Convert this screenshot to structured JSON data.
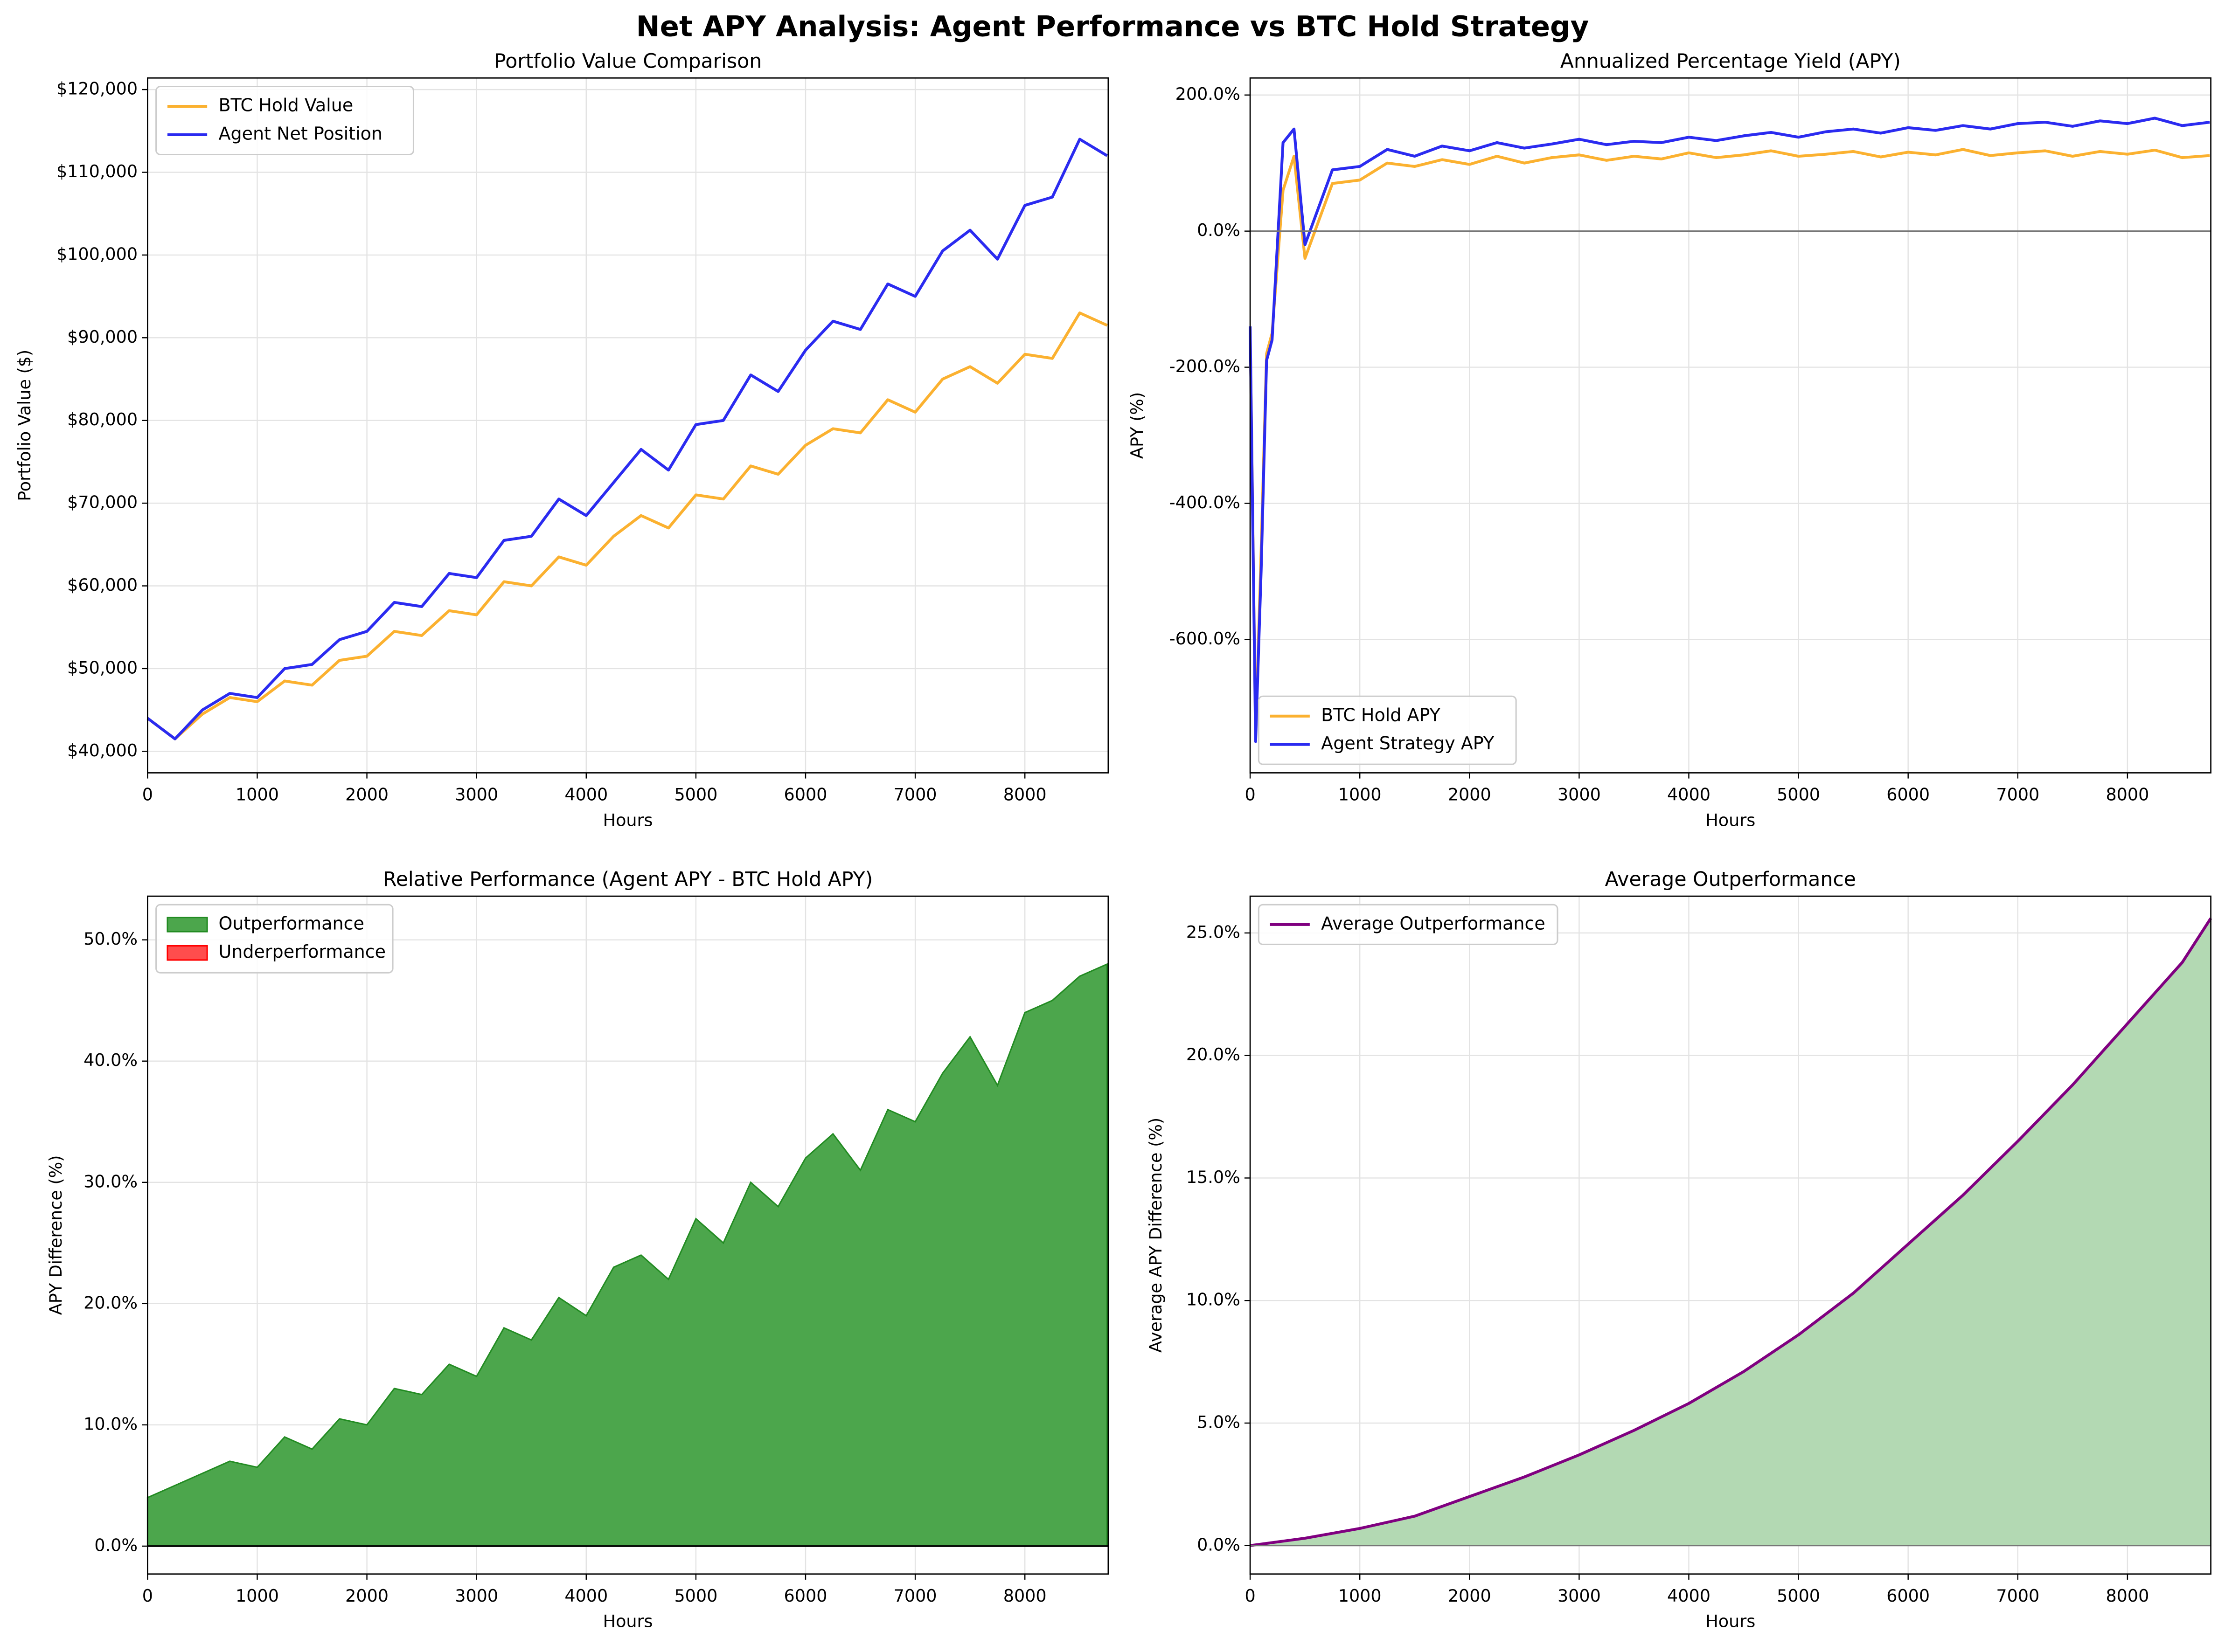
{
  "title": "Net APY Analysis: Agent Performance vs BTC Hold Strategy",
  "chart_data": [
    {
      "type": "line",
      "title": "Portfolio Value Comparison",
      "x_label": "Hours",
      "y_label": "Portfolio Value ($)",
      "x": [
        0,
        250,
        500,
        750,
        1000,
        1250,
        1500,
        1750,
        2000,
        2250,
        2500,
        2750,
        3000,
        3250,
        3500,
        3750,
        4000,
        4250,
        4500,
        4750,
        5000,
        5250,
        5500,
        5750,
        6000,
        6250,
        6500,
        6750,
        7000,
        7250,
        7500,
        7750,
        8000,
        8250,
        8500,
        8750
      ],
      "series": [
        {
          "name": "BTC Hold Value",
          "color": "#fbb130",
          "values": [
            44000,
            41500,
            44500,
            46500,
            46000,
            48500,
            48000,
            51000,
            51500,
            54500,
            54000,
            57000,
            56500,
            60500,
            60000,
            63500,
            62500,
            66000,
            68500,
            67000,
            71000,
            70500,
            74500,
            73500,
            77000,
            79000,
            78500,
            82500,
            81000,
            85000,
            86500,
            84500,
            88000,
            87500,
            93000,
            91500
          ]
        },
        {
          "name": "Agent Net Position",
          "color": "#2b2bf0",
          "values": [
            44000,
            41500,
            45000,
            47000,
            46500,
            50000,
            50500,
            53500,
            54500,
            58000,
            57500,
            61500,
            61000,
            65500,
            66000,
            70500,
            68500,
            72500,
            76500,
            74000,
            79500,
            80000,
            85500,
            83500,
            88500,
            92000,
            91000,
            96500,
            95000,
            100500,
            103000,
            99500,
            106000,
            107000,
            114000,
            112000
          ]
        }
      ],
      "xlim": [
        0,
        8760
      ],
      "xticks": [
        0,
        1000,
        2000,
        3000,
        4000,
        5000,
        6000,
        7000,
        8000
      ],
      "ylim": [
        37400,
        121400
      ],
      "yticks": [
        {
          "value": 40000,
          "label": "$40,000"
        },
        {
          "value": 50000,
          "label": "$50,000"
        },
        {
          "value": 60000,
          "label": "$60,000"
        },
        {
          "value": 70000,
          "label": "$70,000"
        },
        {
          "value": 80000,
          "label": "$80,000"
        },
        {
          "value": 90000,
          "label": "$90,000"
        },
        {
          "value": 100000,
          "label": "$100,000"
        },
        {
          "value": 110000,
          "label": "$110,000"
        },
        {
          "value": 120000,
          "label": "$120,000"
        }
      ],
      "grid": true,
      "legend": "upper left"
    },
    {
      "type": "line",
      "title": "Annualized Percentage Yield (APY)",
      "x_label": "Hours",
      "y_label": "APY (%)",
      "x": [
        0,
        50,
        100,
        150,
        200,
        300,
        400,
        500,
        750,
        1000,
        1250,
        1500,
        1750,
        2000,
        2250,
        2500,
        2750,
        3000,
        3250,
        3500,
        3750,
        4000,
        4250,
        4500,
        4750,
        5000,
        5250,
        5500,
        5750,
        6000,
        6250,
        6500,
        6750,
        7000,
        7250,
        7500,
        7750,
        8000,
        8250,
        8500,
        8750
      ],
      "series": [
        {
          "name": "BTC Hold APY",
          "color": "#fbb130",
          "values": [
            -140,
            -740,
            -470,
            -180,
            -150,
            60,
            110,
            -40,
            70,
            75,
            100,
            95,
            105,
            98,
            110,
            100,
            108,
            112,
            104,
            110,
            106,
            115,
            108,
            112,
            118,
            110,
            113,
            117,
            109,
            116,
            112,
            120,
            111,
            115,
            118,
            110,
            117,
            113,
            119,
            108,
            111
          ]
        },
        {
          "name": "Agent Strategy APY",
          "color": "#2b2bf0",
          "values": [
            -140,
            -750,
            -500,
            -190,
            -160,
            130,
            150,
            -20,
            90,
            95,
            120,
            110,
            125,
            118,
            130,
            122,
            128,
            135,
            127,
            132,
            130,
            138,
            133,
            140,
            145,
            138,
            146,
            150,
            144,
            152,
            148,
            155,
            150,
            158,
            160,
            154,
            162,
            158,
            166,
            155,
            160
          ]
        }
      ],
      "xlim": [
        0,
        8760
      ],
      "xticks": [
        0,
        1000,
        2000,
        3000,
        4000,
        5000,
        6000,
        7000,
        8000
      ],
      "ylim": [
        -796,
        225
      ],
      "yticks": [
        {
          "value": -600,
          "label": "-600.0%"
        },
        {
          "value": -400,
          "label": "-400.0%"
        },
        {
          "value": -200,
          "label": "-200.0%"
        },
        {
          "value": 0,
          "label": "0.0%"
        },
        {
          "value": 200,
          "label": "200.0%"
        }
      ],
      "reference_line": 0,
      "grid": true,
      "legend": "lower left"
    },
    {
      "type": "area",
      "title": "Relative Performance (Agent APY - BTC Hold APY)",
      "x_label": "Hours",
      "y_label": "APY Difference (%)",
      "x": [
        0,
        250,
        500,
        750,
        1000,
        1250,
        1500,
        1750,
        2000,
        2250,
        2500,
        2750,
        3000,
        3250,
        3500,
        3750,
        4000,
        4250,
        4500,
        4750,
        5000,
        5250,
        5500,
        5750,
        6000,
        6250,
        6500,
        6750,
        7000,
        7250,
        7500,
        7750,
        8000,
        8250,
        8500,
        8750
      ],
      "series": [
        {
          "name": "Outperformance",
          "color": "#4ca64c",
          "edge_color": "#228b22",
          "values": [
            4,
            5,
            6,
            7,
            6.5,
            9,
            8,
            10.5,
            10,
            13,
            12.5,
            15,
            14,
            18,
            17,
            20.5,
            19,
            23,
            24,
            22,
            27,
            25,
            30,
            28,
            32,
            34,
            31,
            36,
            35,
            39,
            42,
            38,
            44,
            45,
            47,
            48
          ]
        },
        {
          "name": "Underperformance",
          "color": "#ff4d4d",
          "edge_color": "#ff0000",
          "values": [
            null,
            null,
            null,
            null,
            null,
            null,
            null,
            null,
            null,
            null,
            null,
            null,
            null,
            null,
            null,
            null,
            null,
            null,
            null,
            null,
            null,
            null,
            null,
            null,
            null,
            null,
            null,
            null,
            null,
            null,
            null,
            null,
            null,
            null,
            null,
            null
          ]
        }
      ],
      "xlim": [
        0,
        8760
      ],
      "xticks": [
        0,
        1000,
        2000,
        3000,
        4000,
        5000,
        6000,
        7000,
        8000
      ],
      "ylim": [
        -2.3,
        53.6
      ],
      "yticks": [
        {
          "value": 0,
          "label": "0.0%"
        },
        {
          "value": 10,
          "label": "10.0%"
        },
        {
          "value": 20,
          "label": "20.0%"
        },
        {
          "value": 30,
          "label": "30.0%"
        },
        {
          "value": 40,
          "label": "40.0%"
        },
        {
          "value": 50,
          "label": "50.0%"
        }
      ],
      "reference_line": 0,
      "grid": true,
      "legend": "upper left"
    },
    {
      "type": "line",
      "title": "Average Outperformance",
      "x_label": "Hours",
      "y_label": "Average APY Difference (%)",
      "x": [
        0,
        500,
        1000,
        1500,
        2000,
        2500,
        3000,
        3500,
        4000,
        4500,
        5000,
        5500,
        6000,
        6500,
        7000,
        7500,
        8000,
        8500,
        8760
      ],
      "series": [
        {
          "name": "Average Outperformance",
          "color": "#800080",
          "fill": "#b3d9b3",
          "values": [
            0,
            0.3,
            0.7,
            1.2,
            2,
            2.8,
            3.7,
            4.7,
            5.8,
            7.1,
            8.6,
            10.3,
            12.3,
            14.3,
            16.5,
            18.8,
            21.3,
            23.8,
            25.6
          ]
        }
      ],
      "xlim": [
        0,
        8760
      ],
      "xticks": [
        0,
        1000,
        2000,
        3000,
        4000,
        5000,
        6000,
        7000,
        8000
      ],
      "ylim": [
        -1.16,
        26.5
      ],
      "yticks": [
        {
          "value": 0,
          "label": "0.0%"
        },
        {
          "value": 5,
          "label": "5.0%"
        },
        {
          "value": 10,
          "label": "10.0%"
        },
        {
          "value": 15,
          "label": "15.0%"
        },
        {
          "value": 20,
          "label": "20.0%"
        },
        {
          "value": 25,
          "label": "25.0%"
        }
      ],
      "reference_line": 0,
      "grid": true,
      "legend": "upper left"
    }
  ]
}
